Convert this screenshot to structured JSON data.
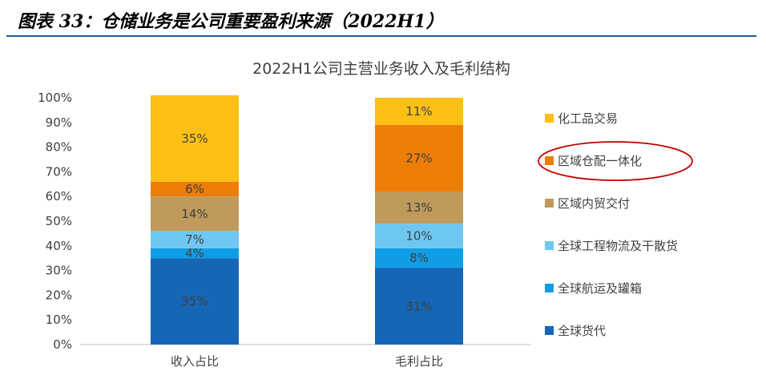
{
  "header": {
    "title": "图表 33：仓储业务是公司重要盈利来源（2022H1）",
    "rule_color": "#1f5c99"
  },
  "chart_data": {
    "type": "bar",
    "stacked": true,
    "title": "2022H1公司主营业务收入及毛利结构",
    "xlabel": "",
    "ylabel": "",
    "categories": [
      "收入占比",
      "毛利占比"
    ],
    "ylim": [
      0,
      100
    ],
    "yticks": [
      "0%",
      "10%",
      "20%",
      "30%",
      "40%",
      "50%",
      "60%",
      "70%",
      "80%",
      "90%",
      "100%"
    ],
    "grid": false,
    "legend_position": "right",
    "series": [
      {
        "name": "全球货代",
        "values": [
          35,
          31
        ],
        "labels": [
          "35%",
          "31%"
        ],
        "color": "#1566b7",
        "label_color": "#ffffff"
      },
      {
        "name": "全球航运及罐箱",
        "values": [
          4,
          8
        ],
        "labels": [
          "4%",
          "8%"
        ],
        "color": "#0f9ee6",
        "label_color": "#404040"
      },
      {
        "name": "全球工程物流及干散货",
        "values": [
          7,
          10
        ],
        "labels": [
          "7%",
          "10%"
        ],
        "color": "#6ec7f2",
        "label_color": "#404040"
      },
      {
        "name": "区域内贸交付",
        "values": [
          14,
          13
        ],
        "labels": [
          "14%",
          "13%"
        ],
        "color": "#bf9a5a",
        "label_color": "#404040"
      },
      {
        "name": "区域仓配一体化",
        "values": [
          6,
          27
        ],
        "labels": [
          "6%",
          "27%"
        ],
        "color": "#ee7d05",
        "label_color": "#404040"
      },
      {
        "name": "化工品交易",
        "values": [
          35,
          11
        ],
        "labels": [
          "35%",
          "11%"
        ],
        "color": "#fcbf13",
        "label_color": "#404040"
      }
    ],
    "legend_order": [
      "化工品交易",
      "区域仓配一体化",
      "区域内贸交付",
      "全球工程物流及干散货",
      "全球航运及罐箱",
      "全球货代"
    ],
    "highlight": {
      "series": "区域仓配一体化",
      "shape": "ellipse",
      "color": "#c00000"
    }
  }
}
